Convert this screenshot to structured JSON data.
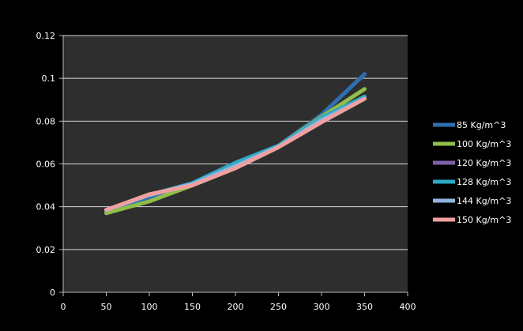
{
  "chart_data": {
    "type": "line",
    "title": "",
    "xlabel": "",
    "ylabel": "",
    "xlim": [
      0,
      400
    ],
    "ylim": [
      0,
      0.12
    ],
    "x_ticks": [
      "0",
      "50",
      "100",
      "150",
      "200",
      "250",
      "300",
      "350",
      "400"
    ],
    "y_ticks": [
      "0",
      "0.02",
      "0.04",
      "0.06",
      "0.08",
      "0.1",
      "0.12"
    ],
    "grid": "horizontal",
    "legend_position": "right",
    "background": "#000000",
    "plot_background": "#2e2e2e",
    "gridline_color": "#d8d8d8",
    "axis_text_color": "#ffffff",
    "x": [
      50,
      100,
      150,
      200,
      250,
      300,
      350
    ],
    "series": [
      {
        "name": "85 Kg/m^3",
        "color": "#2f6fb0",
        "values": [
          0.038,
          0.0445,
          0.051,
          0.0605,
          0.0685,
          0.083,
          0.102
        ]
      },
      {
        "name": "100 Kg/m^3",
        "color": "#8fbe4a",
        "values": [
          0.037,
          0.0425,
          0.05,
          0.0595,
          0.0685,
          0.082,
          0.095
        ]
      },
      {
        "name": "120 Kg/m^3",
        "color": "#8060a8",
        "values": [
          0.0385,
          0.0455,
          0.0505,
          0.059,
          0.068,
          0.0815,
          0.091
        ]
      },
      {
        "name": "128 Kg/m^3",
        "color": "#2ea8c4",
        "values": [
          0.0385,
          0.0455,
          0.051,
          0.0605,
          0.0685,
          0.0815,
          0.0915
        ]
      },
      {
        "name": "144 Kg/m^3",
        "color": "#8fb4de",
        "values": [
          0.0385,
          0.0455,
          0.0505,
          0.059,
          0.068,
          0.0805,
          0.0905
        ]
      },
      {
        "name": "150 Kg/m^3",
        "color": "#f0a0a0",
        "values": [
          0.0385,
          0.0458,
          0.05,
          0.058,
          0.0678,
          0.0795,
          0.0905
        ]
      }
    ]
  }
}
